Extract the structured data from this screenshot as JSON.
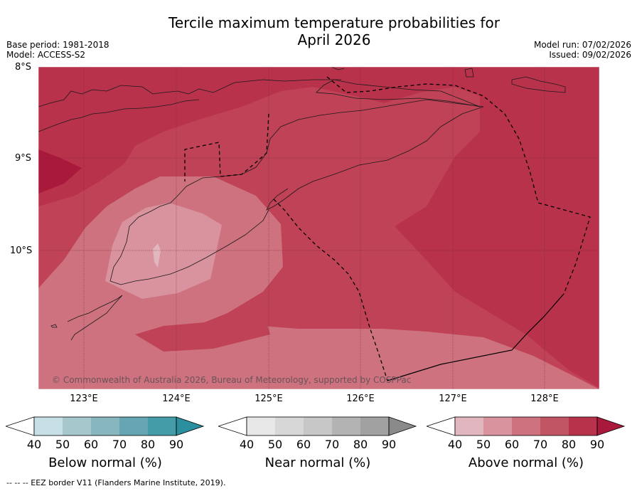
{
  "header": {
    "title_line1": "Tercile maximum temperature probabilities for",
    "title_line2": "April 2026",
    "base_period": "Base period: 1981-2018",
    "model": "Model: ACCESS-S2",
    "model_run": "Model run: 07/02/2026",
    "issued": "Issued: 09/02/2026"
  },
  "map": {
    "lat_labels": [
      "8°S",
      "9°S",
      "10°S"
    ],
    "lon_labels": [
      "123°E",
      "124°E",
      "125°E",
      "126°E",
      "127°E",
      "128°E"
    ],
    "copyright": "© Commonwealth of Australia 2026, Bureau of Meteorology, supported by COSPPac",
    "region_probabilities": {
      "background": 80,
      "northeast_band": 90,
      "west_edge": 90,
      "south_band": 70,
      "timor_core": 60,
      "timor_center": 50
    }
  },
  "colorbars": {
    "below": {
      "label": "Below normal (%)",
      "ticks": [
        "40",
        "50",
        "60",
        "70",
        "80",
        "90"
      ],
      "colors": [
        "#ffffff",
        "#c6e0e6",
        "#a6c8cd",
        "#88b6bf",
        "#65a6b2",
        "#459ca9",
        "#2b8fa0"
      ]
    },
    "near": {
      "label": "Near normal (%)",
      "ticks": [
        "40",
        "50",
        "60",
        "70",
        "80",
        "90"
      ],
      "colors": [
        "#ffffff",
        "#e7e7e7",
        "#d7d7d7",
        "#c7c7c7",
        "#b3b3b3",
        "#a1a1a1",
        "#8a8a8a"
      ]
    },
    "above": {
      "label": "Above normal (%)",
      "ticks": [
        "40",
        "50",
        "60",
        "70",
        "80",
        "90"
      ],
      "colors": [
        "#ffffff",
        "#e2b6be",
        "#d8939e",
        "#cd727e",
        "#c25563",
        "#b9324b",
        "#a8193c"
      ]
    }
  },
  "footer": {
    "eez_note": "--  --  -- EEZ border V11 (Flanders Marine Institute, 2019)."
  }
}
